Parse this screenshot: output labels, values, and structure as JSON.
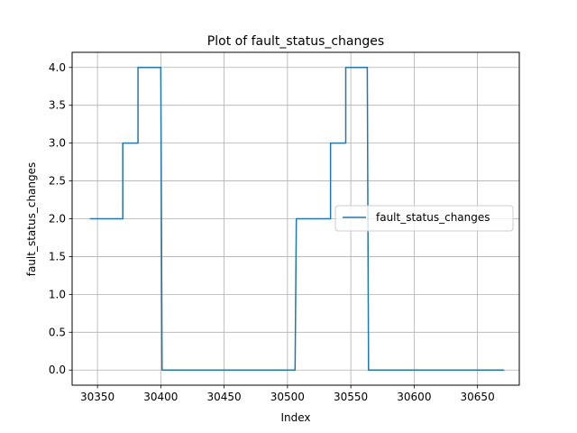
{
  "chart_data": {
    "type": "line",
    "title": "Plot of fault_status_changes",
    "xlabel": "Index",
    "ylabel": "fault_status_changes",
    "xlim": [
      30330,
      30683
    ],
    "ylim": [
      -0.2,
      4.2
    ],
    "xticks": [
      30350,
      30400,
      30450,
      30500,
      30550,
      30600,
      30650
    ],
    "yticks": [
      0.0,
      0.5,
      1.0,
      1.5,
      2.0,
      2.5,
      3.0,
      3.5,
      4.0
    ],
    "ytick_labels": [
      "0.0",
      "0.5",
      "1.0",
      "1.5",
      "2.0",
      "2.5",
      "3.0",
      "3.5",
      "4.0"
    ],
    "grid": true,
    "legend_position": "center-right",
    "series": [
      {
        "name": "fault_status_changes",
        "color": "#1f77b4",
        "x": [
          30344,
          30370,
          30370,
          30382,
          30382,
          30400,
          30401,
          30506,
          30507,
          30534,
          30534,
          30546,
          30546,
          30563,
          30564,
          30671
        ],
        "y": [
          2,
          2,
          3,
          3,
          4,
          4,
          0,
          0,
          2,
          2,
          3,
          3,
          4,
          4,
          0,
          0
        ]
      }
    ]
  }
}
